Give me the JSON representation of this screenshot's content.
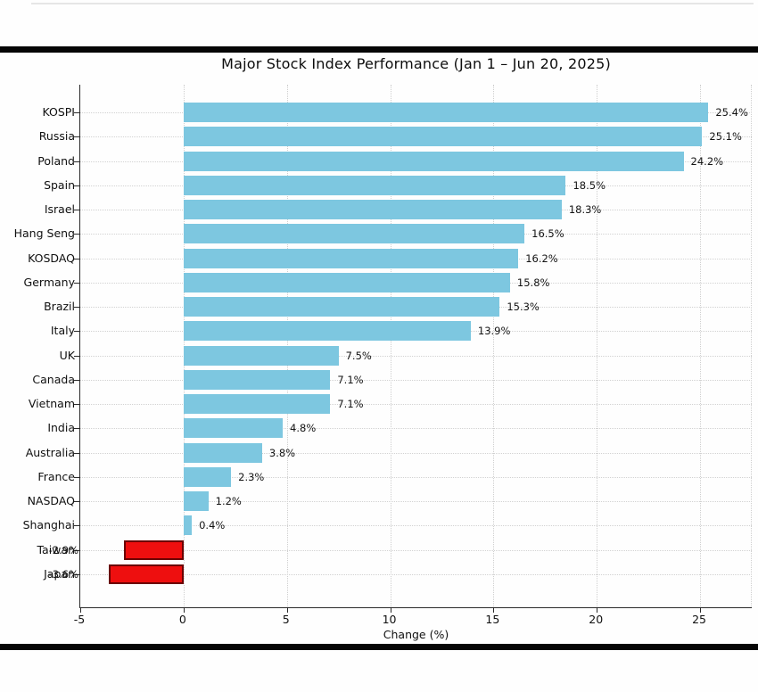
{
  "figure": {
    "title": "Major Stock Index Performance (Jan 1 – Jun 20, 2025)"
  },
  "chart_data": {
    "type": "bar",
    "orientation": "horizontal",
    "title": "Major Stock Index Performance (Jan 1 – Jun 20, 2025)",
    "xlabel": "Change (%)",
    "categories": [
      "KOSPI",
      "Russia",
      "Poland",
      "Spain",
      "Israel",
      "Hang Seng",
      "KOSDAQ",
      "Germany",
      "Brazil",
      "Italy",
      "UK",
      "Canada",
      "Vietnam",
      "India",
      "Australia",
      "France",
      "NASDAQ",
      "Shanghai",
      "Taiwan",
      "Japan"
    ],
    "values": [
      25.4,
      25.1,
      24.2,
      18.5,
      18.3,
      16.5,
      16.2,
      15.8,
      15.3,
      13.9,
      7.5,
      7.1,
      7.1,
      4.8,
      3.8,
      2.3,
      1.2,
      0.4,
      -2.9,
      -3.6
    ],
    "bar_labels": [
      "25.4%",
      "25.1%",
      "24.2%",
      "18.5%",
      "18.3%",
      "16.5%",
      "16.2%",
      "15.8%",
      "15.3%",
      "13.9%",
      "7.5%",
      "7.1%",
      "7.1%",
      "4.8%",
      "3.8%",
      "2.3%",
      "1.2%",
      "0.4%",
      "-2.9%",
      "-3.6%"
    ],
    "xticks": [
      -5,
      0,
      5,
      10,
      15,
      20,
      25
    ],
    "xtick_labels": [
      "-5",
      "0",
      "5",
      "10",
      "15",
      "20",
      "25"
    ],
    "xlim": [
      -5,
      27.5
    ],
    "grid": "dotted-both-axes",
    "legend": "none",
    "positive_color": "#7dc7e0",
    "negative_color": "#ee0f0f",
    "negative_edge_color": "#6b0000"
  }
}
